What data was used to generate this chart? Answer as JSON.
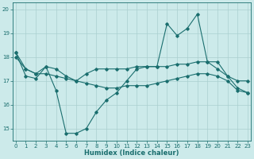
{
  "xlabel": "Humidex (Indice chaleur)",
  "bg_color": "#cceaea",
  "line_color": "#1a6e6e",
  "grid_color": "#aacfcf",
  "x_values": [
    0,
    1,
    2,
    3,
    4,
    5,
    6,
    7,
    8,
    9,
    10,
    11,
    12,
    13,
    14,
    15,
    16,
    17,
    18,
    19,
    20,
    21,
    22,
    23
  ],
  "line1_y": [
    18.2,
    17.2,
    17.1,
    17.6,
    16.6,
    14.8,
    14.8,
    15.0,
    15.7,
    16.2,
    16.5,
    17.0,
    17.5,
    17.6,
    17.6,
    19.4,
    18.9,
    19.2,
    19.8,
    17.8,
    17.8,
    17.2,
    16.7,
    16.5
  ],
  "line2_y": [
    18.2,
    17.5,
    17.3,
    17.6,
    17.5,
    17.2,
    17.0,
    17.3,
    17.5,
    17.5,
    17.5,
    17.5,
    17.6,
    17.6,
    17.6,
    17.6,
    17.7,
    17.7,
    17.8,
    17.8,
    17.5,
    17.2,
    17.0,
    17.0
  ],
  "line3_y": [
    18.0,
    17.5,
    17.3,
    17.3,
    17.2,
    17.1,
    17.0,
    16.9,
    16.8,
    16.7,
    16.7,
    16.8,
    16.8,
    16.8,
    16.9,
    17.0,
    17.1,
    17.2,
    17.3,
    17.3,
    17.2,
    17.0,
    16.6,
    16.5
  ],
  "ylim": [
    14.5,
    20.3
  ],
  "yticks": [
    15,
    16,
    17,
    18,
    19,
    20
  ],
  "xticks": [
    0,
    1,
    2,
    3,
    4,
    5,
    6,
    7,
    8,
    9,
    10,
    11,
    12,
    13,
    14,
    15,
    16,
    17,
    18,
    19,
    20,
    21,
    22,
    23
  ]
}
